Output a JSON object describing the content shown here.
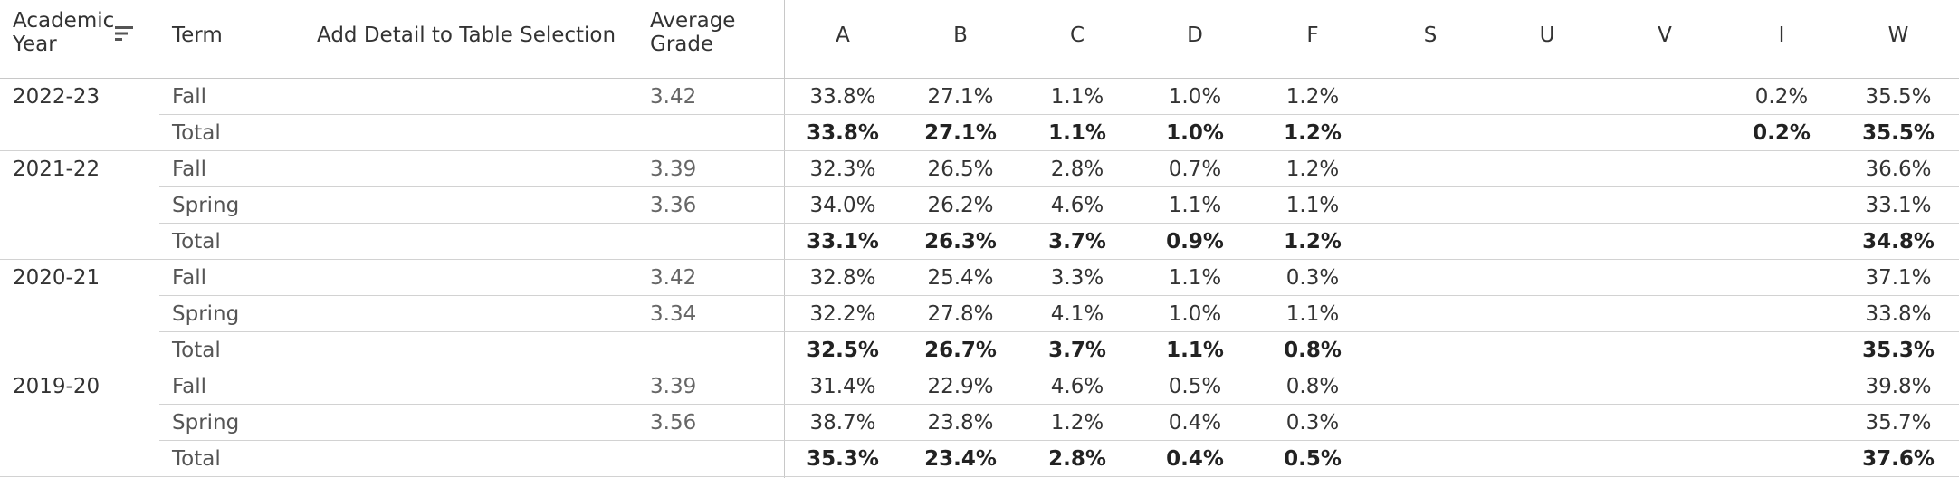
{
  "header": {
    "academic_year": "Academic\nYear",
    "term": "Term",
    "add_detail": "Add Detail to Table Selection",
    "average_grade": "Average\nGrade",
    "grades": [
      "A",
      "B",
      "C",
      "D",
      "F",
      "S",
      "U",
      "V",
      "I",
      "W"
    ]
  },
  "rows": [
    {
      "year": "2022-23",
      "term": "Fall",
      "avg": "3.42",
      "total": false,
      "values": [
        "33.8%",
        "27.1%",
        "1.1%",
        "1.0%",
        "1.2%",
        "",
        "",
        "",
        "0.2%",
        "35.5%"
      ]
    },
    {
      "year": "",
      "term": "Total",
      "avg": "",
      "total": true,
      "values": [
        "33.8%",
        "27.1%",
        "1.1%",
        "1.0%",
        "1.2%",
        "",
        "",
        "",
        "0.2%",
        "35.5%"
      ]
    },
    {
      "year": "2021-22",
      "term": "Fall",
      "avg": "3.39",
      "total": false,
      "values": [
        "32.3%",
        "26.5%",
        "2.8%",
        "0.7%",
        "1.2%",
        "",
        "",
        "",
        "",
        "36.6%"
      ]
    },
    {
      "year": "",
      "term": "Spring",
      "avg": "3.36",
      "total": false,
      "values": [
        "34.0%",
        "26.2%",
        "4.6%",
        "1.1%",
        "1.1%",
        "",
        "",
        "",
        "",
        "33.1%"
      ]
    },
    {
      "year": "",
      "term": "Total",
      "avg": "",
      "total": true,
      "values": [
        "33.1%",
        "26.3%",
        "3.7%",
        "0.9%",
        "1.2%",
        "",
        "",
        "",
        "",
        "34.8%"
      ]
    },
    {
      "year": "2020-21",
      "term": "Fall",
      "avg": "3.42",
      "total": false,
      "values": [
        "32.8%",
        "25.4%",
        "3.3%",
        "1.1%",
        "0.3%",
        "",
        "",
        "",
        "",
        "37.1%"
      ]
    },
    {
      "year": "",
      "term": "Spring",
      "avg": "3.34",
      "total": false,
      "values": [
        "32.2%",
        "27.8%",
        "4.1%",
        "1.0%",
        "1.1%",
        "",
        "",
        "",
        "",
        "33.8%"
      ]
    },
    {
      "year": "",
      "term": "Total",
      "avg": "",
      "total": true,
      "values": [
        "32.5%",
        "26.7%",
        "3.7%",
        "1.1%",
        "0.8%",
        "",
        "",
        "",
        "",
        "35.3%"
      ]
    },
    {
      "year": "2019-20",
      "term": "Fall",
      "avg": "3.39",
      "total": false,
      "values": [
        "31.4%",
        "22.9%",
        "4.6%",
        "0.5%",
        "0.8%",
        "",
        "",
        "",
        "",
        "39.8%"
      ]
    },
    {
      "year": "",
      "term": "Spring",
      "avg": "3.56",
      "total": false,
      "values": [
        "38.7%",
        "23.8%",
        "1.2%",
        "0.4%",
        "0.3%",
        "",
        "",
        "",
        "",
        "35.7%"
      ]
    },
    {
      "year": "",
      "term": "Total",
      "avg": "",
      "total": true,
      "values": [
        "35.3%",
        "23.4%",
        "2.8%",
        "0.4%",
        "0.5%",
        "",
        "",
        "",
        "",
        "37.6%"
      ]
    }
  ],
  "icons": {
    "sort": "sort-descending-icon"
  }
}
